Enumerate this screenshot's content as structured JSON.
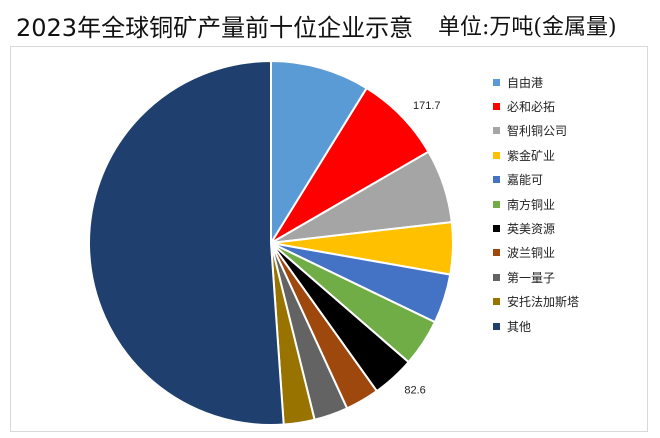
{
  "title": "2023年全球铜矿产量前十位企业示意",
  "unit": "单位:万吨(金属量)",
  "chart_data": {
    "type": "pie",
    "categories": [
      "自由港",
      "必和必拓",
      "智利铜公司",
      "紫金矿业",
      "嘉能可",
      "南方铜业",
      "英美资源",
      "波兰铜业",
      "第一量子",
      "安托法加斯塔",
      "其他"
    ],
    "values": [
      193.0,
      171.7,
      143.0,
      101.0,
      96.0,
      92.0,
      82.6,
      66.0,
      66.0,
      60.0,
      1120.0
    ],
    "colors": [
      "#5b9bd5",
      "#ff0000",
      "#a5a5a5",
      "#ffc000",
      "#4472c4",
      "#70ad47",
      "#000000",
      "#9e480e",
      "#636363",
      "#997300",
      "#1f3f6e"
    ],
    "data_labels": [
      "",
      "171.7",
      "",
      "",
      "",
      "",
      "82.6",
      "",
      "",
      "",
      ""
    ],
    "legend_position": "right"
  }
}
